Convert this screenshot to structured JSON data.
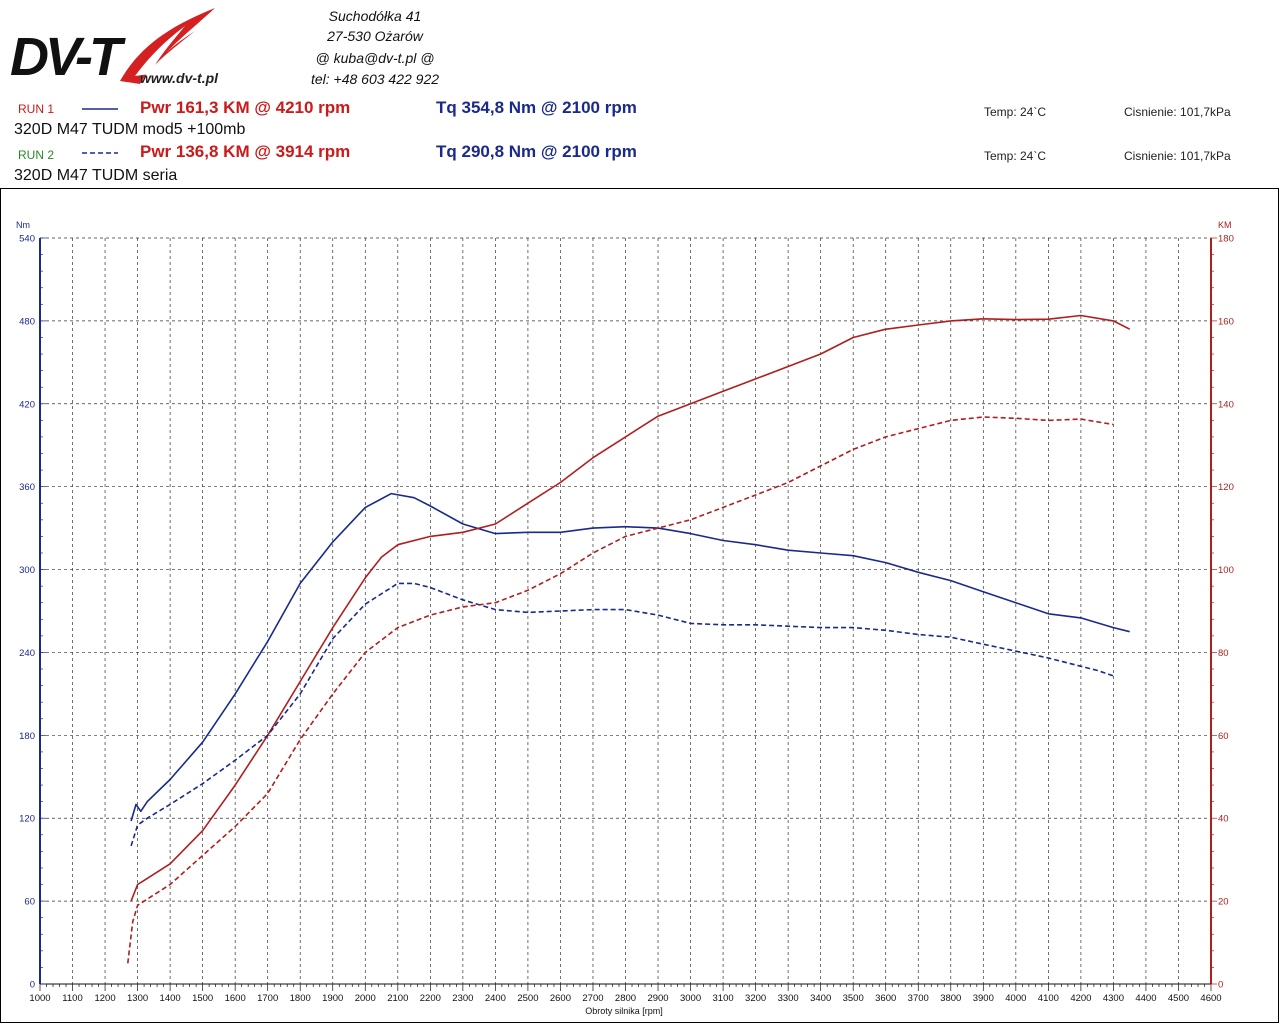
{
  "header": {
    "logo_text": "DV-T",
    "website": "www.dv-t.pl",
    "address_line1": "Suchodółka 41",
    "address_line2": "27-530 Ożarów",
    "email": "@ kuba@dv-t.pl @",
    "phone": "tel: +48 603 422 922"
  },
  "runs": [
    {
      "label": "RUN 1",
      "label_color": "#cc1a1a",
      "power_text": "Pwr 161,3 KM @ 4210 rpm",
      "torque_text": "Tq 354,8 Nm @ 2100 rpm",
      "name": "320D M47 TUDM mod5 +100mb",
      "temp": "Temp: 24`C",
      "pressure": "Cisnienie: 101,7kPa",
      "line_style": "solid"
    },
    {
      "label": "RUN 2",
      "label_color": "#2a8a2a",
      "power_text": "Pwr 136,8 KM @ 3914 rpm",
      "torque_text": "Tq 290,8 Nm @ 2100 rpm",
      "name": "320D M47 TUDM seria",
      "temp": "Temp: 24`C",
      "pressure": "Cisnienie: 101,7kPa",
      "line_style": "dashed"
    }
  ],
  "colors": {
    "torque": "#1a2a8c",
    "power": "#b01e1e",
    "grid": "#333333"
  },
  "chart_data": {
    "type": "line",
    "xlabel": "Obroty silnika [rpm]",
    "ylabel_left": "Nm",
    "ylabel_right": "KM",
    "xlim": [
      1000,
      4600
    ],
    "ylim_left": [
      0,
      540
    ],
    "ylim_right": [
      0,
      180
    ],
    "x_ticks": [
      1000,
      1100,
      1200,
      1300,
      1400,
      1500,
      1600,
      1700,
      1800,
      1900,
      2000,
      2100,
      2200,
      2300,
      2400,
      2500,
      2600,
      2700,
      2800,
      2900,
      3000,
      3100,
      3200,
      3300,
      3400,
      3500,
      3600,
      3700,
      3800,
      3900,
      4000,
      4100,
      4200,
      4300,
      4400,
      4500,
      4600
    ],
    "y_ticks_left": [
      0,
      60,
      120,
      180,
      240,
      300,
      360,
      420,
      480,
      540
    ],
    "y_ticks_right": [
      0,
      20,
      40,
      60,
      80,
      100,
      120,
      140,
      160,
      180
    ],
    "grid": true,
    "series": [
      {
        "name": "RUN 1",
        "quantity": "torque",
        "axis": "left",
        "style": "solid",
        "points": [
          [
            1280,
            118
          ],
          [
            1295,
            130
          ],
          [
            1310,
            125
          ],
          [
            1330,
            132
          ],
          [
            1400,
            148
          ],
          [
            1500,
            175
          ],
          [
            1600,
            210
          ],
          [
            1700,
            248
          ],
          [
            1800,
            290
          ],
          [
            1900,
            320
          ],
          [
            2000,
            345
          ],
          [
            2080,
            355
          ],
          [
            2150,
            352
          ],
          [
            2200,
            346
          ],
          [
            2300,
            333
          ],
          [
            2400,
            326
          ],
          [
            2500,
            327
          ],
          [
            2600,
            327
          ],
          [
            2700,
            330
          ],
          [
            2800,
            331
          ],
          [
            2900,
            330
          ],
          [
            3000,
            326
          ],
          [
            3100,
            321
          ],
          [
            3200,
            318
          ],
          [
            3300,
            314
          ],
          [
            3400,
            312
          ],
          [
            3500,
            310
          ],
          [
            3600,
            305
          ],
          [
            3700,
            298
          ],
          [
            3800,
            292
          ],
          [
            3900,
            284
          ],
          [
            4000,
            276
          ],
          [
            4100,
            268
          ],
          [
            4200,
            265
          ],
          [
            4300,
            258
          ],
          [
            4350,
            255
          ]
        ]
      },
      {
        "name": "RUN 1",
        "quantity": "power",
        "axis": "right",
        "style": "solid",
        "points": [
          [
            1280,
            20
          ],
          [
            1300,
            24
          ],
          [
            1320,
            25
          ],
          [
            1400,
            29
          ],
          [
            1500,
            37
          ],
          [
            1600,
            48
          ],
          [
            1700,
            60
          ],
          [
            1800,
            73
          ],
          [
            1900,
            86
          ],
          [
            2000,
            98
          ],
          [
            2050,
            103
          ],
          [
            2100,
            106
          ],
          [
            2200,
            108
          ],
          [
            2300,
            109
          ],
          [
            2400,
            111
          ],
          [
            2500,
            116
          ],
          [
            2600,
            121
          ],
          [
            2700,
            127
          ],
          [
            2800,
            132
          ],
          [
            2900,
            137
          ],
          [
            3000,
            140
          ],
          [
            3100,
            143
          ],
          [
            3200,
            146
          ],
          [
            3300,
            149
          ],
          [
            3400,
            152
          ],
          [
            3500,
            156
          ],
          [
            3600,
            158
          ],
          [
            3700,
            159
          ],
          [
            3800,
            160
          ],
          [
            3900,
            160.5
          ],
          [
            4000,
            160.3
          ],
          [
            4100,
            160.4
          ],
          [
            4200,
            161.3
          ],
          [
            4300,
            160
          ],
          [
            4350,
            158
          ]
        ]
      },
      {
        "name": "RUN 2",
        "quantity": "torque",
        "axis": "left",
        "style": "dashed",
        "points": [
          [
            1280,
            100
          ],
          [
            1300,
            115
          ],
          [
            1330,
            120
          ],
          [
            1400,
            130
          ],
          [
            1500,
            145
          ],
          [
            1600,
            162
          ],
          [
            1700,
            180
          ],
          [
            1800,
            210
          ],
          [
            1900,
            250
          ],
          [
            2000,
            275
          ],
          [
            2100,
            290
          ],
          [
            2150,
            290
          ],
          [
            2200,
            287
          ],
          [
            2300,
            278
          ],
          [
            2400,
            271
          ],
          [
            2500,
            269
          ],
          [
            2600,
            270
          ],
          [
            2700,
            271
          ],
          [
            2800,
            271
          ],
          [
            2900,
            267
          ],
          [
            3000,
            261
          ],
          [
            3100,
            260
          ],
          [
            3200,
            260
          ],
          [
            3300,
            259
          ],
          [
            3400,
            258
          ],
          [
            3500,
            258
          ],
          [
            3600,
            256
          ],
          [
            3700,
            253
          ],
          [
            3800,
            251
          ],
          [
            3900,
            246
          ],
          [
            4000,
            241
          ],
          [
            4100,
            236
          ],
          [
            4200,
            230
          ],
          [
            4250,
            227
          ],
          [
            4300,
            223
          ]
        ]
      },
      {
        "name": "RUN 2",
        "quantity": "power",
        "axis": "right",
        "style": "dashed",
        "points": [
          [
            1270,
            5
          ],
          [
            1285,
            15
          ],
          [
            1300,
            19
          ],
          [
            1400,
            24
          ],
          [
            1500,
            31
          ],
          [
            1600,
            38
          ],
          [
            1700,
            46
          ],
          [
            1800,
            59
          ],
          [
            1900,
            70
          ],
          [
            2000,
            80
          ],
          [
            2100,
            86
          ],
          [
            2200,
            89
          ],
          [
            2300,
            91
          ],
          [
            2400,
            92
          ],
          [
            2500,
            95
          ],
          [
            2600,
            99
          ],
          [
            2700,
            104
          ],
          [
            2800,
            108
          ],
          [
            2900,
            110
          ],
          [
            3000,
            112
          ],
          [
            3100,
            115
          ],
          [
            3200,
            118
          ],
          [
            3300,
            121
          ],
          [
            3400,
            125
          ],
          [
            3500,
            129
          ],
          [
            3600,
            132
          ],
          [
            3700,
            134
          ],
          [
            3800,
            136
          ],
          [
            3900,
            136.8
          ],
          [
            4000,
            136.5
          ],
          [
            4100,
            136
          ],
          [
            4200,
            136.3
          ],
          [
            4300,
            135
          ]
        ]
      }
    ]
  }
}
